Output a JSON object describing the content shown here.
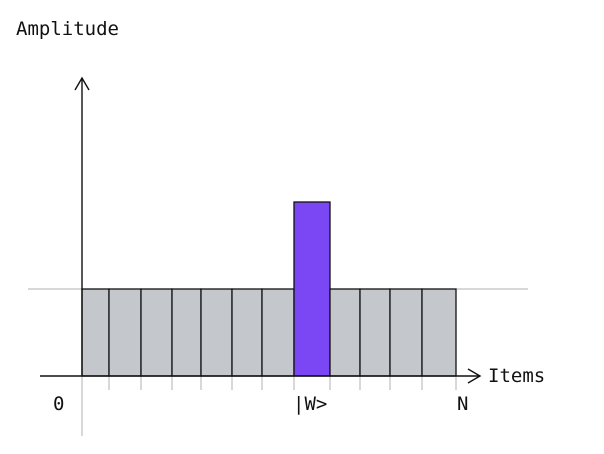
{
  "labels": {
    "y_axis": "Amplitude",
    "x_axis": "Items",
    "origin": "0",
    "marked_item": "|W>",
    "end": "N"
  },
  "chart_data": {
    "type": "bar",
    "bar_count": 12,
    "marked_index": 7,
    "values": [
      1,
      1,
      1,
      1,
      1,
      1,
      1,
      2,
      1,
      1,
      1,
      1
    ],
    "xlabel": "Items",
    "ylabel": "Amplitude"
  },
  "colors": {
    "bar_fill": "#c4c8cd",
    "marked_fill": "#7b47f5",
    "stroke": "#111111",
    "guide": "#b0b0b0"
  }
}
